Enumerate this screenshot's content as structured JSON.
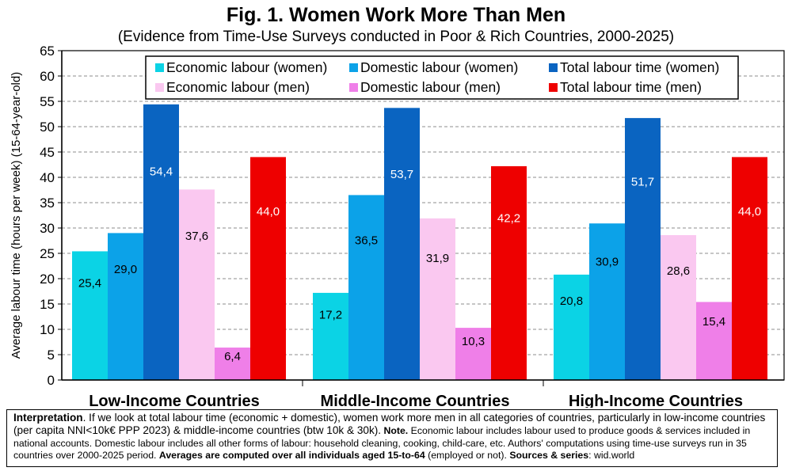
{
  "title": "Fig. 1. Women Work More Than Men",
  "subtitle": "(Evidence from Time-Use Surveys conducted in Poor & Rich Countries, 2000-2025)",
  "chart_data": {
    "type": "bar",
    "ylabel": "Average labour time (hours per week) (15-64-year-old)",
    "xlabel": "",
    "ylim": [
      0,
      65
    ],
    "yticks": [
      0,
      5,
      10,
      15,
      20,
      25,
      30,
      35,
      40,
      45,
      50,
      55,
      60,
      65
    ],
    "grid": true,
    "legend_position": "top",
    "categories": [
      "Low-Income Countries",
      "Middle-Income Countries",
      "High-Income Countries"
    ],
    "series": [
      {
        "name": "Economic labour (women)",
        "color": "#0bd3e5",
        "values": [
          25.4,
          17.2,
          20.8
        ],
        "labels": [
          "25,4",
          "17,2",
          "20,8"
        ]
      },
      {
        "name": "Domestic labour (women)",
        "color": "#0ca2e8",
        "values": [
          29.0,
          36.5,
          30.9
        ],
        "labels": [
          "29,0",
          "36,5",
          "30,9"
        ]
      },
      {
        "name": "Total labour time (women)",
        "color": "#0a64c1",
        "values": [
          54.4,
          53.7,
          51.7
        ],
        "labels": [
          "54,4",
          "53,7",
          "51,7"
        ]
      },
      {
        "name": "Economic labour (men)",
        "color": "#fac8f0",
        "values": [
          37.6,
          31.9,
          28.6
        ],
        "labels": [
          "37,6",
          "31,9",
          "28,6"
        ]
      },
      {
        "name": "Domestic labour (men)",
        "color": "#ef7fe8",
        "values": [
          6.4,
          10.3,
          15.4
        ],
        "labels": [
          "6,4",
          "10,3",
          "15,4"
        ]
      },
      {
        "name": "Total labour time (men)",
        "color": "#ee0000",
        "values": [
          44.0,
          42.2,
          44.0
        ],
        "labels": [
          "44,0",
          "42,2",
          "44,0"
        ]
      }
    ]
  },
  "note": {
    "interp_label": "Interpretation",
    "interp_text": ". If we look at total labour time (economic + domestic), women work more men in all categories of countries, particularly in low-income countries (per capita NNI<10k€ PPP 2023) & middle-income countries (btw 10k & 30k).",
    "note_label": "Note.",
    "note_text": " Economic labour includes labour used to produce goods & services included in national accounts. Domestic labour includes all other forms of labour: household cleaning, cooking, child-care, etc. Authors' computations using time-use surveys run in 35 countries over 2000-2025 period.",
    "avg_text": "Averages are computed over all individuals aged 15-to-64",
    "avg_suffix": " (employed or not).",
    "sources_label": "Sources & series",
    "sources_text": ": wid.world"
  }
}
